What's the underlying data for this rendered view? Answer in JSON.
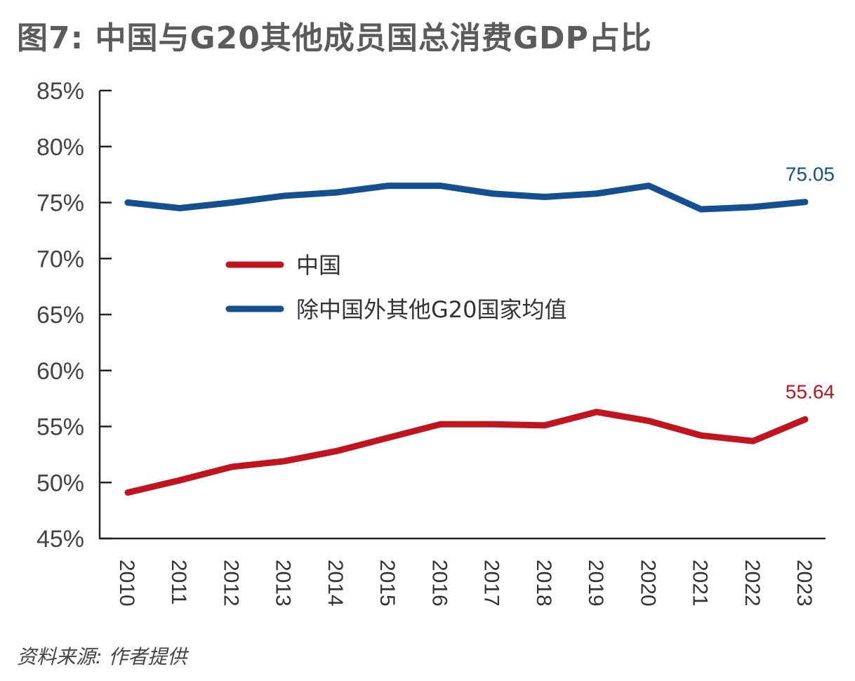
{
  "title": "图7: 中国与G20其他成员国总消费GDP占比",
  "source": "资料来源: 作者提供",
  "chart_data": {
    "type": "line",
    "title": "图7: 中国与G20其他成员国总消费GDP占比",
    "xlabel": "",
    "ylabel": "",
    "x": [
      "2010",
      "2011",
      "2012",
      "2013",
      "2014",
      "2015",
      "2016",
      "2017",
      "2018",
      "2019",
      "2020",
      "2021",
      "2022",
      "2023"
    ],
    "ylim": [
      45,
      85
    ],
    "yticks": [
      45,
      50,
      55,
      60,
      65,
      70,
      75,
      80,
      85
    ],
    "ytick_labels": [
      "45%",
      "50%",
      "55%",
      "60%",
      "65%",
      "70%",
      "75%",
      "80%",
      "85%"
    ],
    "grid": false,
    "legend_position": "center-left",
    "series": [
      {
        "name": "中国",
        "color": "#c0141f",
        "values": [
          49.1,
          50.2,
          51.4,
          51.9,
          52.8,
          54.0,
          55.2,
          55.2,
          55.1,
          56.3,
          55.5,
          54.2,
          53.7,
          55.64
        ],
        "end_label": "55.64"
      },
      {
        "name": "除中国外其他G20国家均值",
        "color": "#14508f",
        "values": [
          75.0,
          74.5,
          75.0,
          75.6,
          75.9,
          76.5,
          76.5,
          75.8,
          75.5,
          75.8,
          76.5,
          74.4,
          74.6,
          75.05
        ],
        "end_label": "75.05"
      }
    ]
  }
}
